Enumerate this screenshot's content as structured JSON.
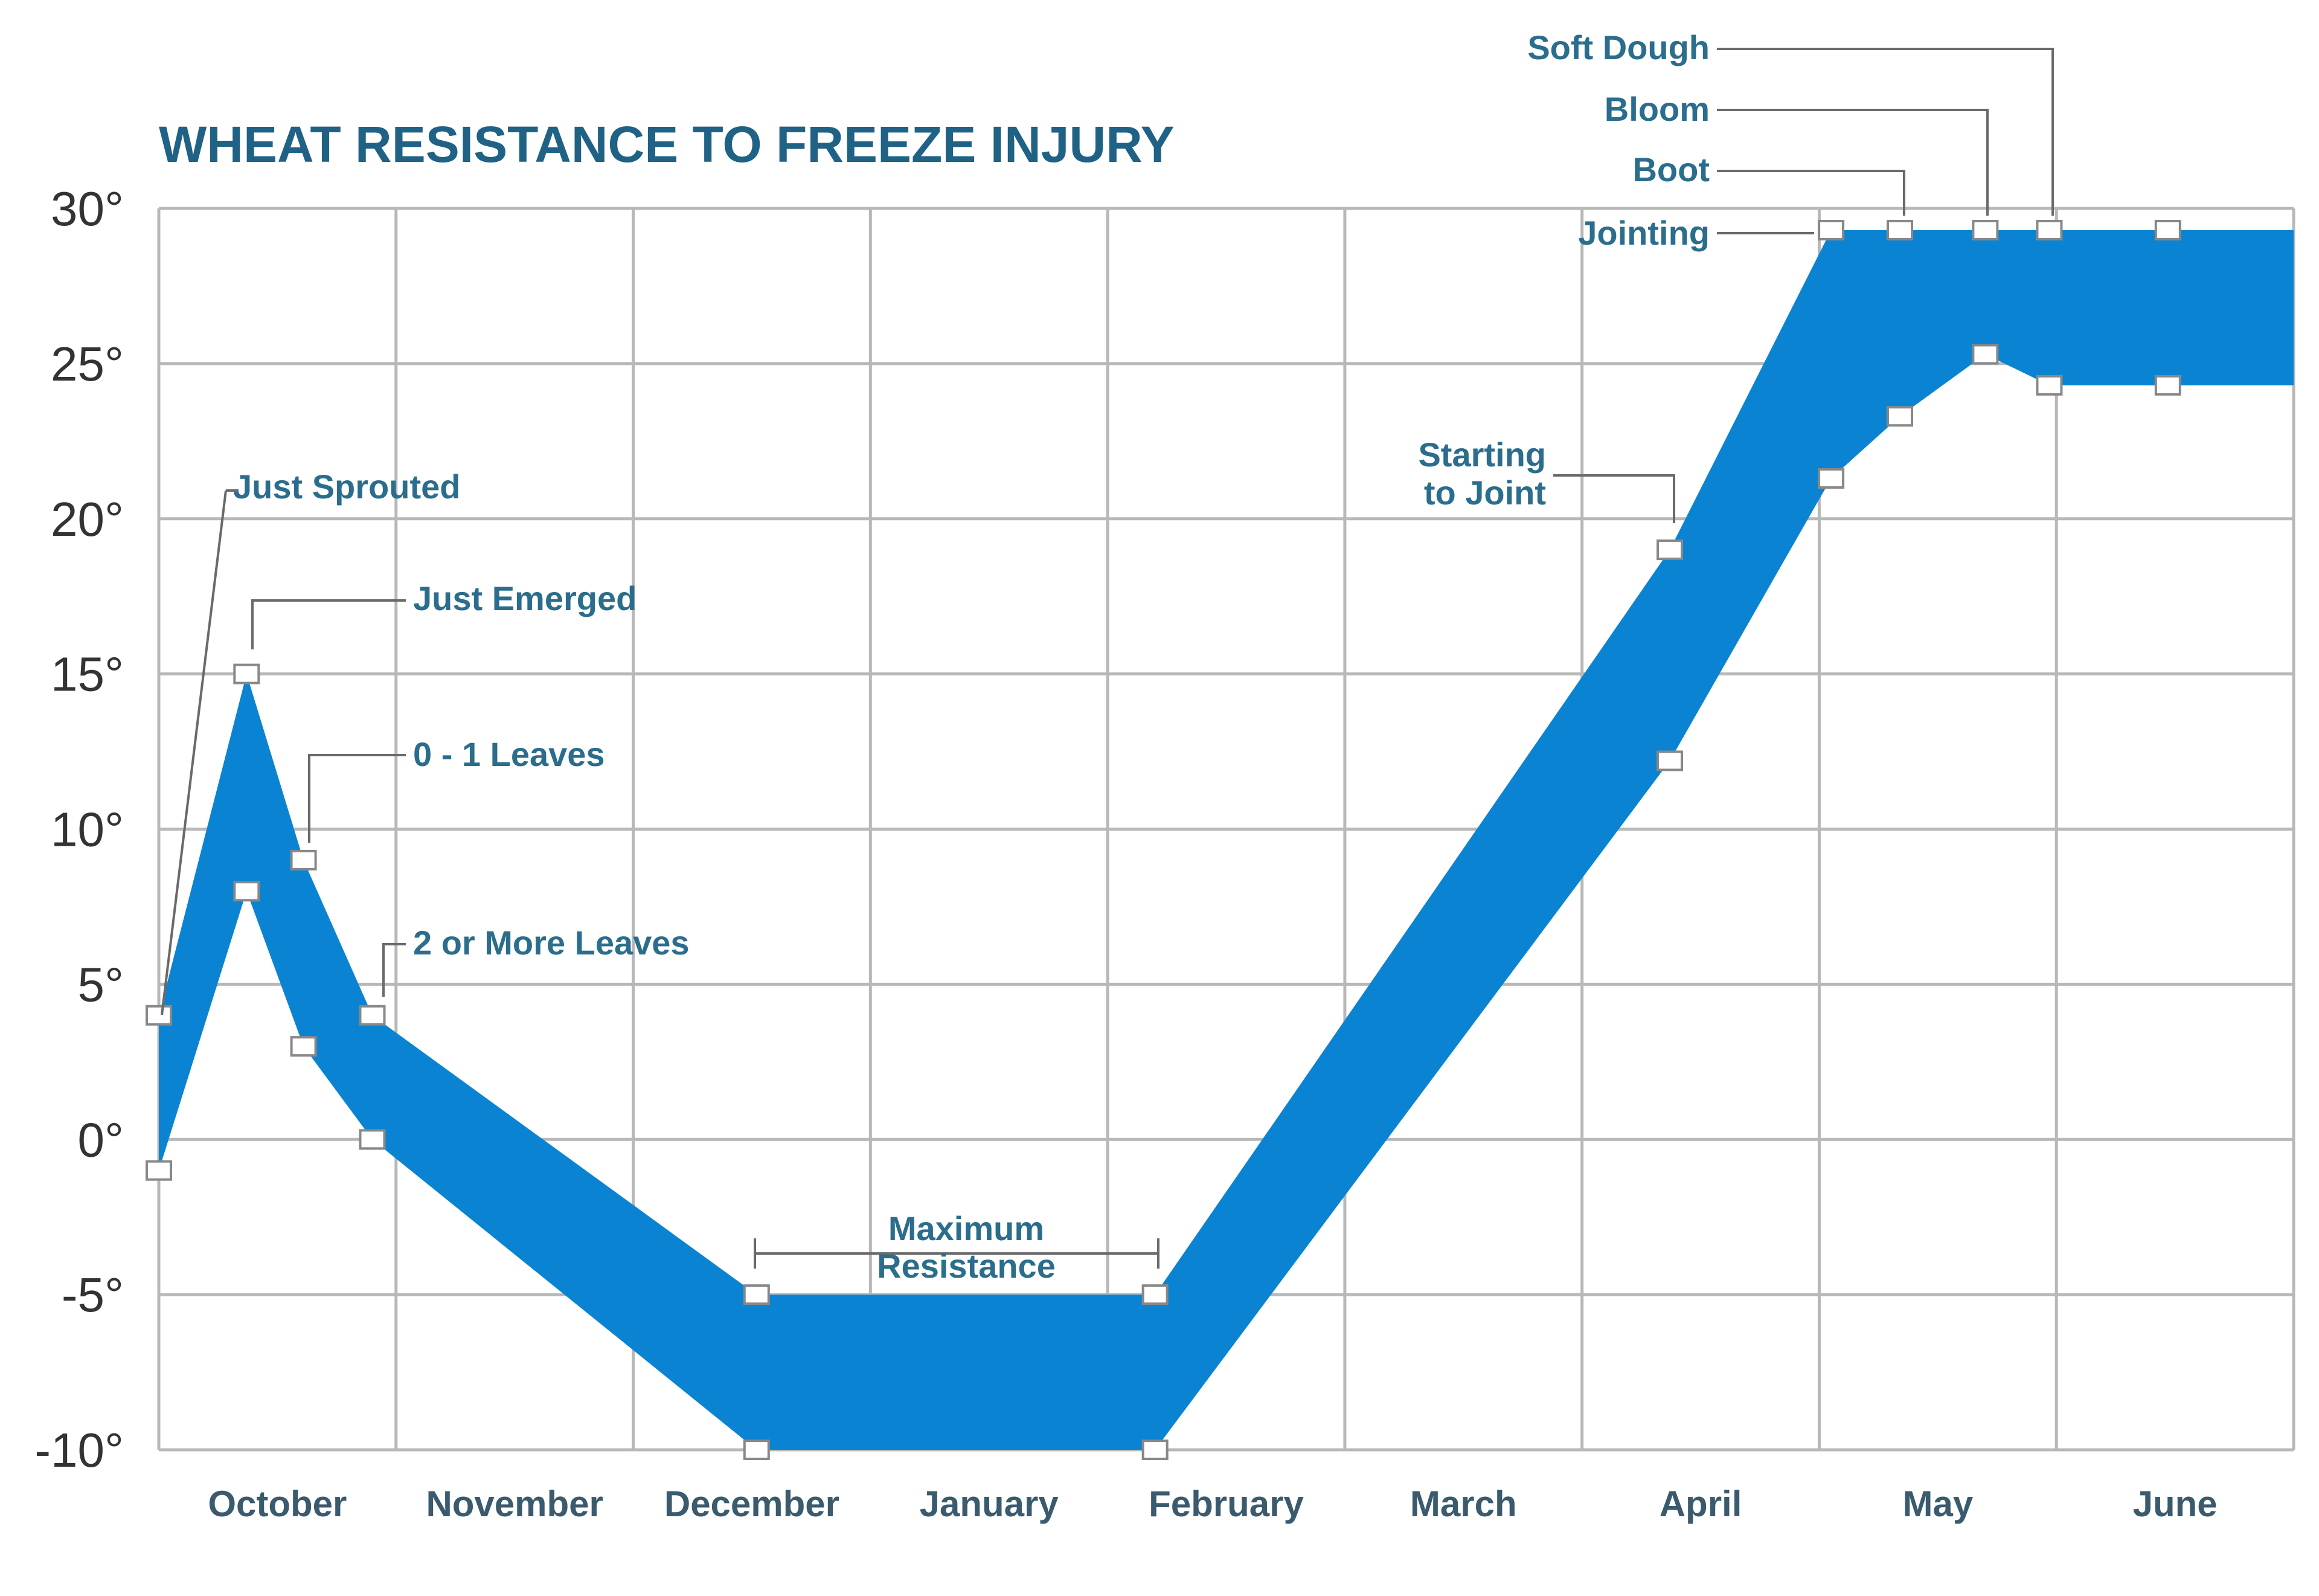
{
  "chart_data": {
    "type": "area",
    "title": "WHEAT RESISTANCE TO FREEZE INJURY",
    "xlabel": "",
    "ylabel": "",
    "categories": [
      "October",
      "November",
      "December",
      "January",
      "February",
      "March",
      "April",
      "May",
      "June"
    ],
    "ylim": [
      -10,
      30
    ],
    "yticks": [
      "30°",
      "25°",
      "20°",
      "15°",
      "10°",
      "5°",
      "0°",
      "-5°",
      "-10°"
    ],
    "grid": true,
    "band_color": "#0a84d2",
    "series": [
      {
        "role": "upper",
        "x": [
          0.0,
          0.37,
          0.61,
          0.9,
          2.52,
          4.2,
          6.37,
          7.05,
          7.34,
          7.7,
          7.97,
          8.47,
          9.0
        ],
        "y": [
          4,
          15,
          9,
          4,
          -5,
          -5,
          19,
          29.3,
          29.3,
          29.3,
          29.3,
          29.3,
          29.3
        ]
      },
      {
        "role": "lower",
        "x": [
          0.0,
          0.37,
          0.61,
          0.9,
          2.52,
          4.2,
          6.37,
          7.05,
          7.34,
          7.7,
          7.97,
          8.47,
          9.0
        ],
        "y": [
          -1,
          8,
          3,
          0,
          -10,
          -10,
          12.2,
          21.3,
          23.3,
          25.3,
          24.3,
          24.3,
          24.3
        ]
      }
    ],
    "markers_upper": [
      0,
      1,
      2,
      3,
      4,
      5,
      6,
      7,
      8,
      9,
      10,
      11
    ],
    "markers_lower": [
      0,
      1,
      2,
      3,
      4,
      5,
      6,
      7,
      8,
      9,
      10,
      11
    ],
    "annotations": [
      {
        "label": "Just Sprouted"
      },
      {
        "label": "Just Emerged"
      },
      {
        "label": "0 - 1 Leaves"
      },
      {
        "label": "2 or More Leaves"
      },
      {
        "label": [
          "Maximum",
          "Resistance"
        ]
      },
      {
        "label": [
          "Starting",
          "to Joint"
        ]
      },
      {
        "label": "Jointing"
      },
      {
        "label": "Boot"
      },
      {
        "label": "Bloom"
      },
      {
        "label": "Soft Dough"
      }
    ]
  }
}
